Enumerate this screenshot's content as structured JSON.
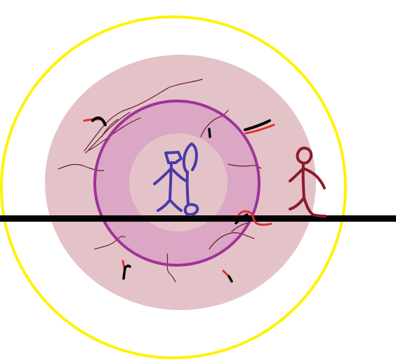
{
  "colors": {
    "background": "#ffffff",
    "outer_ring": "#fff200",
    "outer_disc": "#e4c3c8",
    "middle_disc": "#dba7c4",
    "middle_ring": "#a0329a",
    "inner_disc": "#e4c3c8",
    "inner_figure": "#4a3aa8",
    "outer_figure": "#8b1a2a",
    "horizon_line": "#000000",
    "squiggle_red": "#e03030",
    "squiggle_black": "#000000",
    "thin_lines": "#6b1a2a"
  },
  "icons": {
    "inner_figure": "stick-figure-with-staff-icon",
    "outer_figure": "stick-figure-walking-icon"
  }
}
